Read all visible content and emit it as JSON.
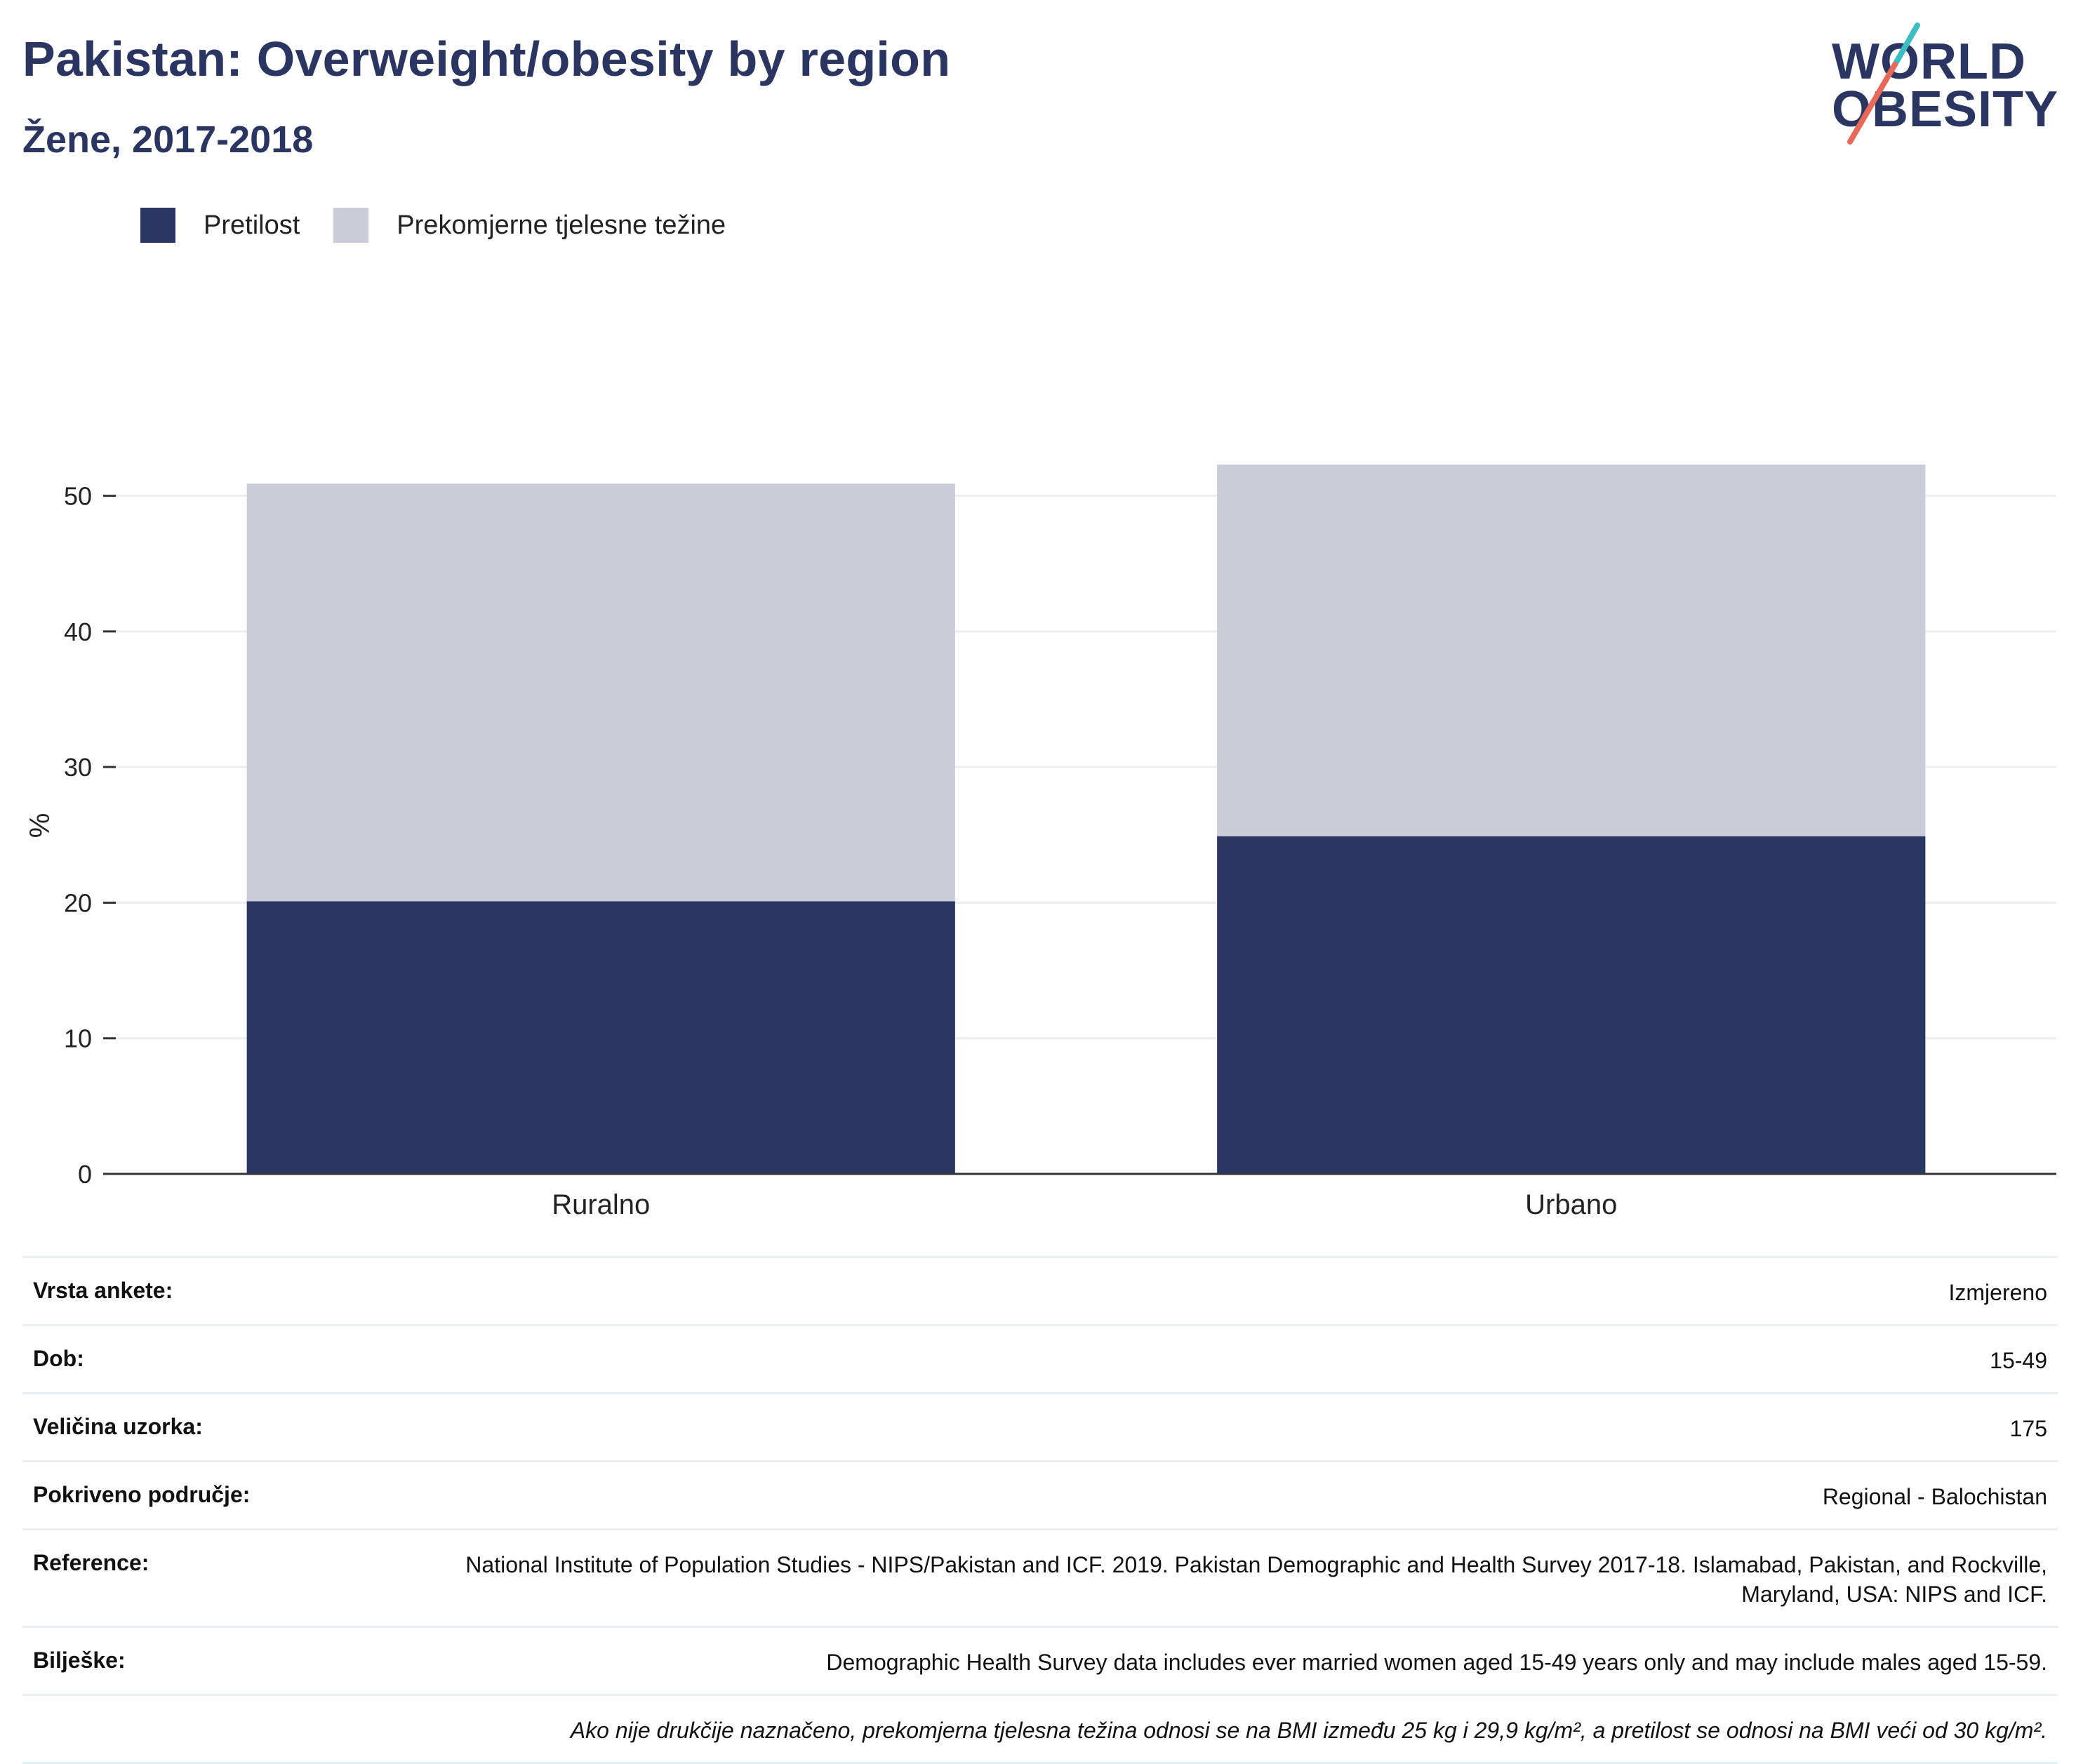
{
  "header": {
    "title": "Pakistan: Overweight/obesity by region",
    "subtitle": "Žene, 2017-2018"
  },
  "logo": {
    "line1": "WORLD",
    "line2": "OBESITY",
    "accent_colors": [
      "#3bbdc4",
      "#e8695a"
    ]
  },
  "legend": {
    "items": [
      {
        "label": "Pretilost",
        "color": "#2a3663"
      },
      {
        "label": "Prekomjerne tjelesne težine",
        "color": "#cacdd8"
      }
    ]
  },
  "chart_data": {
    "type": "bar",
    "stacked": true,
    "categories": [
      "Ruralno",
      "Urbano"
    ],
    "series": [
      {
        "name": "Pretilost",
        "values": [
          20.1,
          24.9
        ],
        "color": "#2a3663"
      },
      {
        "name": "Prekomjerne tjelesne težine",
        "values": [
          30.8,
          27.4
        ],
        "color": "#cacdd8"
      }
    ],
    "ylabel": "%",
    "ylim": [
      0,
      55
    ],
    "yticks": [
      0,
      10,
      20,
      30,
      40,
      50
    ],
    "grid": true,
    "legend_position": "top-left"
  },
  "info": {
    "rows": [
      {
        "label": "Vrsta ankete:",
        "value": "Izmjereno"
      },
      {
        "label": "Dob:",
        "value": "15-49"
      },
      {
        "label": "Veličina uzorka:",
        "value": "175"
      },
      {
        "label": "Pokriveno područje:",
        "value": "Regional - Balochistan"
      },
      {
        "label": "Reference:",
        "value": "National Institute of Population Studies - NIPS/Pakistan and ICF. 2019. Pakistan Demographic and Health Survey 2017-18. Islamabad, Pakistan, and Rockville, Maryland, USA: NIPS and ICF."
      },
      {
        "label": "Bilješke:",
        "value": "Demographic Health Survey data includes ever married women aged 15-49 years only and may include males aged 15-59."
      }
    ],
    "note": "Ako nije drukčije naznačeno, prekomjerna tjelesna težina odnosi se na BMI između 25 kg i 29,9 kg/m², a pretilost se odnosi na BMI veći od 30 kg/m²."
  }
}
